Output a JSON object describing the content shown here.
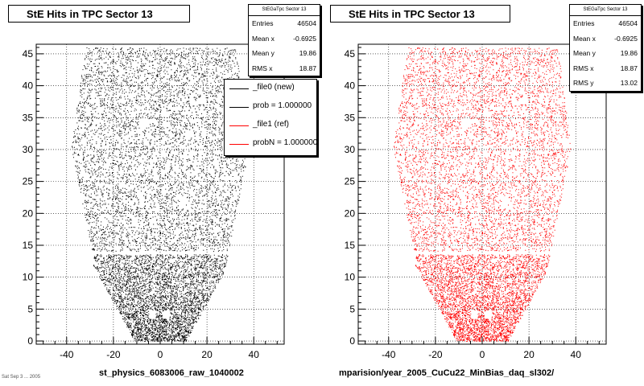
{
  "chart_data": [
    {
      "type": "scatter",
      "title": "StE Hits in TPC Sector 13",
      "xlabel": "st_physics_6083006_raw_1040002",
      "ylabel": "",
      "xlim": [
        -53,
        53
      ],
      "ylim": [
        -0.5,
        46.5
      ],
      "xticks": [
        -40,
        -20,
        0,
        20,
        40
      ],
      "yticks": [
        0,
        5,
        10,
        15,
        20,
        25,
        30,
        35,
        40,
        45
      ],
      "grid": true,
      "marker_color": "#000000",
      "series": [
        {
          "name": "_file0 (new)",
          "color": "#000000"
        }
      ],
      "stats": {
        "header": "StEGaTpc Sector 13",
        "rows": [
          {
            "label": "Entries",
            "value": "46504"
          },
          {
            "label": "Mean x",
            "value": "-0.6925"
          },
          {
            "label": "Mean y",
            "value": "19.86"
          },
          {
            "label": "RMS x",
            "value": "18.87"
          }
        ]
      },
      "legend": {
        "position": "top-right",
        "entries": [
          {
            "label": "_file0 (new)",
            "color": "#000000"
          },
          {
            "label": "prob = 1.000000",
            "color": "#000000"
          },
          {
            "label": "_file1 (ref)",
            "color": "#ff0000"
          },
          {
            "label": "probN = 1.000000",
            "color": "#ff0000"
          }
        ]
      }
    },
    {
      "type": "scatter",
      "title": "StE Hits in TPC Sector 13",
      "xlabel": "mparision/year_2005_CuCu22_MinBias_daq_sl302/",
      "ylabel": "",
      "xlim": [
        -53,
        53
      ],
      "ylim": [
        -0.5,
        46.5
      ],
      "xticks": [
        -40,
        -20,
        0,
        20,
        40
      ],
      "yticks": [
        0,
        5,
        10,
        15,
        20,
        25,
        30,
        35,
        40,
        45
      ],
      "grid": true,
      "marker_color": "#ff0000",
      "series": [
        {
          "name": "_file1 (ref)",
          "color": "#ff0000"
        }
      ],
      "stats": {
        "header": "StEGaTpc Sector 13",
        "rows": [
          {
            "label": "Entries",
            "value": "46504"
          },
          {
            "label": "Mean x",
            "value": "-0.6925"
          },
          {
            "label": "Mean y",
            "value": "19.86"
          },
          {
            "label": "RMS x",
            "value": "18.87"
          },
          {
            "label": "RMS y",
            "value": "13.02"
          }
        ]
      }
    }
  ],
  "footer_text": "Sat Sep  3  ... 2005"
}
